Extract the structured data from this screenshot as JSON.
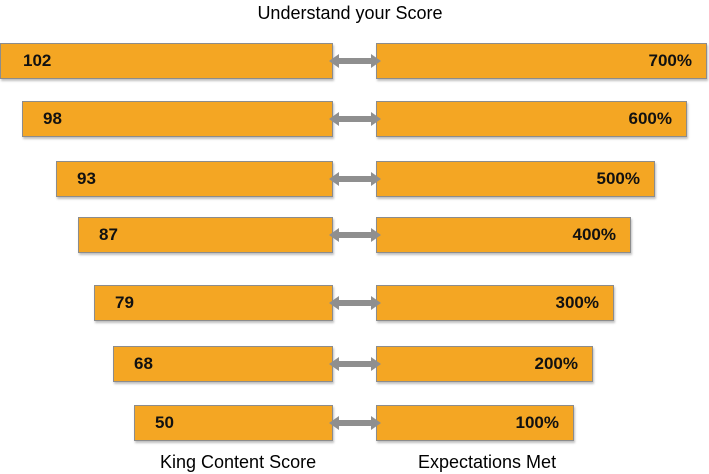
{
  "title": "Understand your Score",
  "left_label": "King Content Score",
  "right_label": "Expectations Met",
  "colors": {
    "bar": "#f4a623",
    "arrow": "#8f8f8f"
  },
  "rows": [
    {
      "score": "102",
      "expectation": "700%"
    },
    {
      "score": "98",
      "expectation": "600%"
    },
    {
      "score": "93",
      "expectation": "500%"
    },
    {
      "score": "87",
      "expectation": "400%"
    },
    {
      "score": "79",
      "expectation": "300%"
    },
    {
      "score": "68",
      "expectation": "200%"
    },
    {
      "score": "50",
      "expectation": "100%"
    }
  ]
}
